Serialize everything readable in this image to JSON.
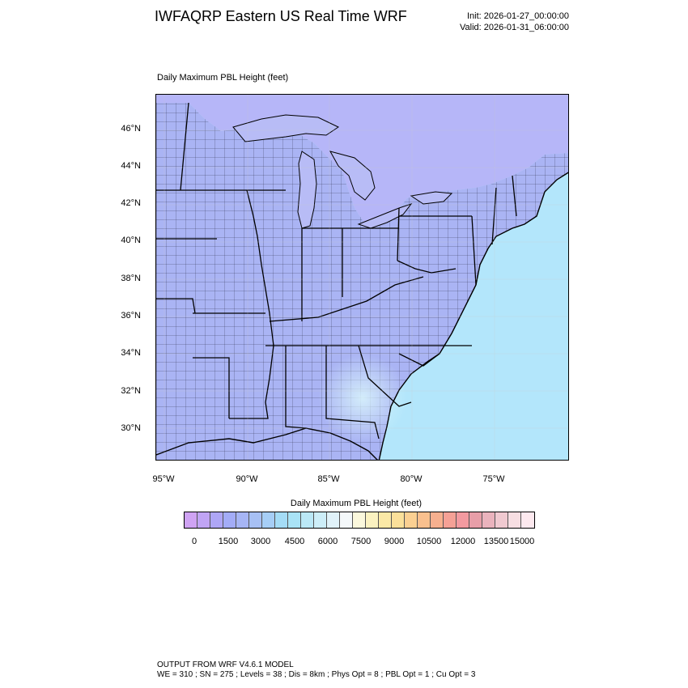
{
  "header": {
    "title": "IWFAQRP Eastern US Real Time WRF",
    "init": "Init: 2026-01-27_00:00:00",
    "valid": "Valid: 2026-01-31_06:00:00"
  },
  "map": {
    "field_label": "Daily Maximum PBL Height   (feet)",
    "lat_labels": [
      "46°N",
      "44°N",
      "42°N",
      "40°N",
      "38°N",
      "36°N",
      "34°N",
      "32°N",
      "30°N"
    ],
    "lon_labels": [
      "95°W",
      "90°W",
      "85°W",
      "80°W",
      "75°W"
    ],
    "colors": {
      "land": "#aab4f4",
      "ocean": "#b3e6fb",
      "lakes": "#b8bcf6",
      "canada": "#b6b6f8"
    }
  },
  "colorbar": {
    "title": "Daily Maximum PBL Height  (feet)",
    "ticks": [
      "0",
      "1500",
      "3000",
      "4500",
      "6000",
      "7500",
      "9000",
      "10500",
      "12000",
      "13500",
      "15000"
    ],
    "colors": [
      "#cfa3f3",
      "#c0a4f4",
      "#aea6f6",
      "#a3acf7",
      "#a6b5f5",
      "#a7c0f4",
      "#a6cef6",
      "#a4dcf6",
      "#a9e3f6",
      "#bbe8f6",
      "#cdeef8",
      "#e0f2f9",
      "#f4f8fa",
      "#fbf8dc",
      "#fbf2c0",
      "#fbe9a6",
      "#fbe09a",
      "#fbd092",
      "#f9c08e",
      "#f7b08f",
      "#f5a196",
      "#f39aa0",
      "#e79ea8",
      "#eab3bd",
      "#f0c9d0",
      "#f7dee2",
      "#fde9ef"
    ]
  },
  "footer": {
    "line1": "OUTPUT FROM WRF V4.6.1 MODEL",
    "line2": "WE = 310 ; SN = 275 ; Levels = 38 ; Dis = 8km ; Phys Opt = 8 ; PBL Opt = 1 ; Cu Opt = 3"
  }
}
